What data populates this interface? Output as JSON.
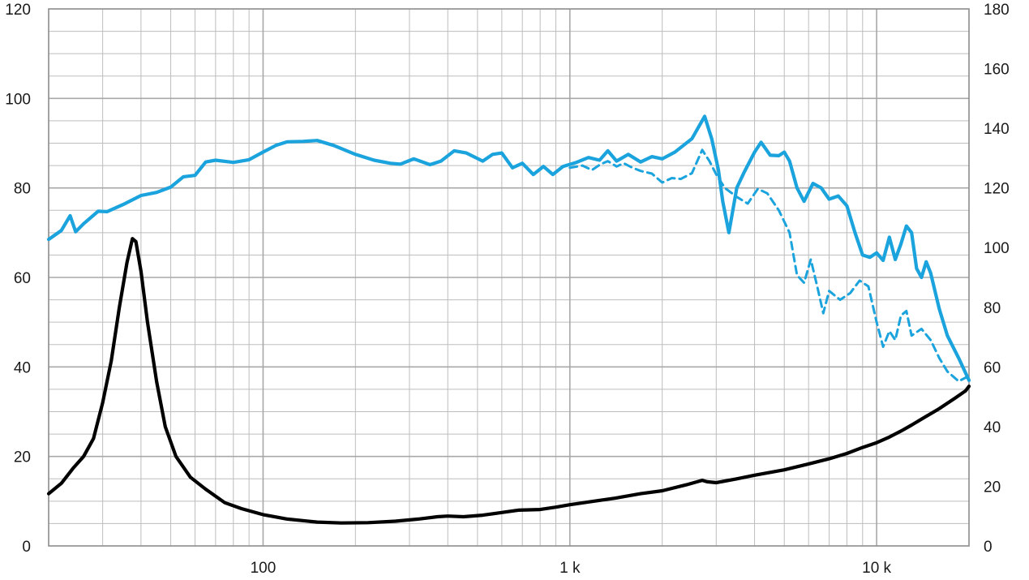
{
  "chart_data": {
    "type": "line",
    "title": "",
    "xlabel": "",
    "ylabel": "",
    "y2label": "",
    "x_scale": "log",
    "xlim": [
      20,
      20000
    ],
    "ylim": [
      0,
      120
    ],
    "y2lim": [
      0,
      180
    ],
    "grid": true,
    "legend": "none",
    "x_ticks": [
      {
        "value": 100,
        "label": "100"
      },
      {
        "value": 1000,
        "label": "1 k"
      },
      {
        "value": 10000,
        "label": "10 k"
      }
    ],
    "y_ticks": [
      {
        "value": 0,
        "label": "0"
      },
      {
        "value": 20,
        "label": "20"
      },
      {
        "value": 40,
        "label": "40"
      },
      {
        "value": 60,
        "label": "60"
      },
      {
        "value": 80,
        "label": "80"
      },
      {
        "value": 100,
        "label": "100"
      },
      {
        "value": 120,
        "label": "120"
      }
    ],
    "y2_ticks": [
      {
        "value": 0,
        "label": "0"
      },
      {
        "value": 20,
        "label": "20"
      },
      {
        "value": 40,
        "label": "40"
      },
      {
        "value": 60,
        "label": "60"
      },
      {
        "value": 80,
        "label": "80"
      },
      {
        "value": 100,
        "label": "100"
      },
      {
        "value": 120,
        "label": "120"
      },
      {
        "value": 140,
        "label": "140"
      },
      {
        "value": 160,
        "label": "160"
      },
      {
        "value": 180,
        "label": "180"
      }
    ],
    "series": [
      {
        "axis": "left",
        "color": "#1aa3dc",
        "style": "solid",
        "points": [
          [
            20,
            68.5
          ],
          [
            22,
            70.5
          ],
          [
            23.5,
            73.8
          ],
          [
            24.5,
            70.2
          ],
          [
            26,
            72
          ],
          [
            29,
            74.8
          ],
          [
            31,
            74.7
          ],
          [
            35,
            76.3
          ],
          [
            40,
            78.3
          ],
          [
            45,
            79
          ],
          [
            50,
            80.2
          ],
          [
            55,
            82.5
          ],
          [
            60,
            82.8
          ],
          [
            65,
            85.8
          ],
          [
            70,
            86.2
          ],
          [
            80,
            85.7
          ],
          [
            90,
            86.3
          ],
          [
            100,
            88
          ],
          [
            110,
            89.5
          ],
          [
            120,
            90.3
          ],
          [
            135,
            90.4
          ],
          [
            150,
            90.6
          ],
          [
            170,
            89.5
          ],
          [
            200,
            87.5
          ],
          [
            230,
            86.2
          ],
          [
            260,
            85.5
          ],
          [
            280,
            85.3
          ],
          [
            310,
            86.5
          ],
          [
            350,
            85.2
          ],
          [
            380,
            86
          ],
          [
            420,
            88.3
          ],
          [
            460,
            87.8
          ],
          [
            520,
            86
          ],
          [
            560,
            87.5
          ],
          [
            600,
            87.8
          ],
          [
            650,
            84.5
          ],
          [
            700,
            85.5
          ],
          [
            760,
            83
          ],
          [
            820,
            84.8
          ],
          [
            880,
            83
          ],
          [
            950,
            84.8
          ],
          [
            1050,
            85.7
          ],
          [
            1150,
            86.8
          ],
          [
            1250,
            86.2
          ],
          [
            1330,
            88.3
          ],
          [
            1420,
            86
          ],
          [
            1550,
            87.5
          ],
          [
            1700,
            85.8
          ],
          [
            1850,
            87
          ],
          [
            2000,
            86.5
          ],
          [
            2200,
            88
          ],
          [
            2500,
            91
          ],
          [
            2750,
            96
          ],
          [
            2900,
            91
          ],
          [
            3050,
            84
          ],
          [
            3150,
            77
          ],
          [
            3300,
            70
          ],
          [
            3500,
            80
          ],
          [
            3700,
            83.5
          ],
          [
            4000,
            88
          ],
          [
            4200,
            90.2
          ],
          [
            4500,
            87.3
          ],
          [
            4800,
            87.2
          ],
          [
            5000,
            88
          ],
          [
            5200,
            86
          ],
          [
            5500,
            80
          ],
          [
            5800,
            77
          ],
          [
            6200,
            81
          ],
          [
            6600,
            80
          ],
          [
            7000,
            77.5
          ],
          [
            7500,
            78.2
          ],
          [
            8000,
            76
          ],
          [
            8500,
            70
          ],
          [
            9000,
            65
          ],
          [
            9500,
            64.5
          ],
          [
            10000,
            65.5
          ],
          [
            10500,
            63.8
          ],
          [
            11000,
            69
          ],
          [
            11500,
            64
          ],
          [
            12000,
            67.5
          ],
          [
            12500,
            71.5
          ],
          [
            13000,
            70
          ],
          [
            13500,
            62
          ],
          [
            14000,
            60
          ],
          [
            14500,
            63.5
          ],
          [
            15000,
            61
          ],
          [
            16000,
            53
          ],
          [
            17000,
            47
          ],
          [
            18500,
            42
          ],
          [
            20000,
            37
          ]
        ]
      },
      {
        "axis": "left",
        "color": "#1aa3dc",
        "style": "dashed",
        "points": [
          [
            1000,
            84.5
          ],
          [
            1100,
            85
          ],
          [
            1180,
            84
          ],
          [
            1260,
            85.3
          ],
          [
            1330,
            86
          ],
          [
            1420,
            84.8
          ],
          [
            1500,
            85.5
          ],
          [
            1600,
            84.5
          ],
          [
            1700,
            83.8
          ],
          [
            1850,
            83.2
          ],
          [
            2000,
            81.2
          ],
          [
            2150,
            82.2
          ],
          [
            2300,
            82
          ],
          [
            2500,
            83.3
          ],
          [
            2700,
            88.5
          ],
          [
            2850,
            86
          ],
          [
            3000,
            83
          ],
          [
            3200,
            80
          ],
          [
            3500,
            78
          ],
          [
            3800,
            76.5
          ],
          [
            4100,
            79.8
          ],
          [
            4400,
            78.8
          ],
          [
            4800,
            75
          ],
          [
            5200,
            70
          ],
          [
            5500,
            60.5
          ],
          [
            5800,
            58.8
          ],
          [
            6100,
            64
          ],
          [
            6400,
            58
          ],
          [
            6700,
            52
          ],
          [
            7000,
            57
          ],
          [
            7600,
            55
          ],
          [
            8200,
            56.5
          ],
          [
            8800,
            59.3
          ],
          [
            9400,
            58
          ],
          [
            10000,
            50
          ],
          [
            10500,
            44.5
          ],
          [
            11000,
            48
          ],
          [
            11500,
            46
          ],
          [
            12000,
            51.5
          ],
          [
            12500,
            52.5
          ],
          [
            13000,
            47
          ],
          [
            14000,
            48.5
          ],
          [
            15000,
            46
          ],
          [
            16000,
            42
          ],
          [
            17000,
            39
          ],
          [
            18500,
            36.8
          ],
          [
            20000,
            38
          ]
        ]
      },
      {
        "axis": "right",
        "color": "#000000",
        "style": "solid",
        "points": [
          [
            20,
            17.5
          ],
          [
            22,
            21
          ],
          [
            24,
            26
          ],
          [
            26,
            30
          ],
          [
            28,
            36
          ],
          [
            30,
            48
          ],
          [
            32,
            62
          ],
          [
            34,
            80
          ],
          [
            36,
            95
          ],
          [
            37.5,
            103
          ],
          [
            38.5,
            102
          ],
          [
            40,
            92
          ],
          [
            42,
            75
          ],
          [
            45,
            55
          ],
          [
            48,
            40
          ],
          [
            52,
            30
          ],
          [
            58,
            23
          ],
          [
            65,
            19
          ],
          [
            75,
            14.5
          ],
          [
            85,
            12.5
          ],
          [
            100,
            10.5
          ],
          [
            120,
            9
          ],
          [
            150,
            8
          ],
          [
            180,
            7.7
          ],
          [
            220,
            7.8
          ],
          [
            270,
            8.3
          ],
          [
            320,
            9
          ],
          [
            370,
            9.8
          ],
          [
            400,
            10
          ],
          [
            450,
            9.8
          ],
          [
            520,
            10.3
          ],
          [
            600,
            11.2
          ],
          [
            680,
            12
          ],
          [
            800,
            12.2
          ],
          [
            900,
            13
          ],
          [
            1000,
            13.8
          ],
          [
            1200,
            15
          ],
          [
            1400,
            16
          ],
          [
            1700,
            17.5
          ],
          [
            2000,
            18.5
          ],
          [
            2400,
            20.5
          ],
          [
            2700,
            22
          ],
          [
            2800,
            21.5
          ],
          [
            3000,
            21.2
          ],
          [
            3500,
            22.5
          ],
          [
            4000,
            23.7
          ],
          [
            5000,
            25.5
          ],
          [
            6000,
            27.5
          ],
          [
            7000,
            29.2
          ],
          [
            8000,
            31
          ],
          [
            9000,
            33
          ],
          [
            10000,
            34.6
          ],
          [
            11000,
            36.5
          ],
          [
            12000,
            38.5
          ],
          [
            13000,
            40.5
          ],
          [
            14000,
            42.5
          ],
          [
            16000,
            46
          ],
          [
            18000,
            49.5
          ],
          [
            19500,
            52
          ],
          [
            20000,
            53.5
          ]
        ]
      }
    ]
  }
}
